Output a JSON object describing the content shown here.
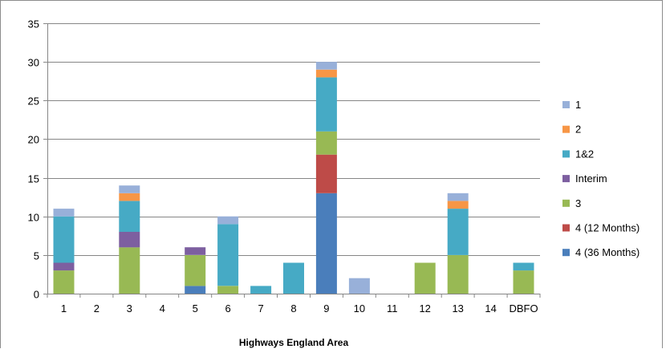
{
  "chart_data": {
    "type": "bar",
    "stacked": true,
    "xlabel": "Highways England Area",
    "ylabel": "",
    "title": "",
    "ylim": [
      0,
      35
    ],
    "yticks": [
      0,
      5,
      10,
      15,
      20,
      25,
      30,
      35
    ],
    "grid": true,
    "legend_position": "right",
    "categories": [
      "1",
      "2",
      "3",
      "4",
      "5",
      "6",
      "7",
      "8",
      "9",
      "10",
      "11",
      "12",
      "13",
      "14",
      "DBFO"
    ],
    "series": [
      {
        "name": "4 (36 Months)",
        "color": "#4a7ebb",
        "values": [
          0,
          0,
          0,
          0,
          1,
          0,
          0,
          0,
          13,
          0,
          0,
          0,
          0,
          0,
          0
        ]
      },
      {
        "name": "4 (12 Months)",
        "color": "#be4b48",
        "values": [
          0,
          0,
          0,
          0,
          0,
          0,
          0,
          0,
          5,
          0,
          0,
          0,
          0,
          0,
          0
        ]
      },
      {
        "name": "3",
        "color": "#98b954",
        "values": [
          3,
          0,
          6,
          0,
          4,
          1,
          0,
          0,
          3,
          0,
          0,
          4,
          5,
          0,
          3
        ]
      },
      {
        "name": "Interim",
        "color": "#7d5fa0",
        "values": [
          1,
          0,
          2,
          0,
          1,
          0,
          0,
          0,
          0,
          0,
          0,
          0,
          0,
          0,
          0
        ]
      },
      {
        "name": "1&2",
        "color": "#46aac5",
        "values": [
          6,
          0,
          4,
          0,
          0,
          8,
          1,
          4,
          7,
          0,
          0,
          0,
          6,
          0,
          1
        ]
      },
      {
        "name": "2",
        "color": "#f79646",
        "values": [
          0,
          0,
          1,
          0,
          0,
          0,
          0,
          0,
          1,
          0,
          0,
          0,
          1,
          0,
          0
        ]
      },
      {
        "name": "1",
        "color": "#98b0d9",
        "values": [
          1,
          0,
          1,
          0,
          0,
          1,
          0,
          0,
          1,
          2,
          0,
          0,
          1,
          0,
          0
        ]
      }
    ],
    "legend_order": [
      "1",
      "2",
      "1&2",
      "Interim",
      "3",
      "4 (12 Months)",
      "4 (36 Months)"
    ]
  },
  "colors": {
    "gridline": "#868686",
    "axis": "#868686",
    "frame": "#8c8c8c"
  }
}
